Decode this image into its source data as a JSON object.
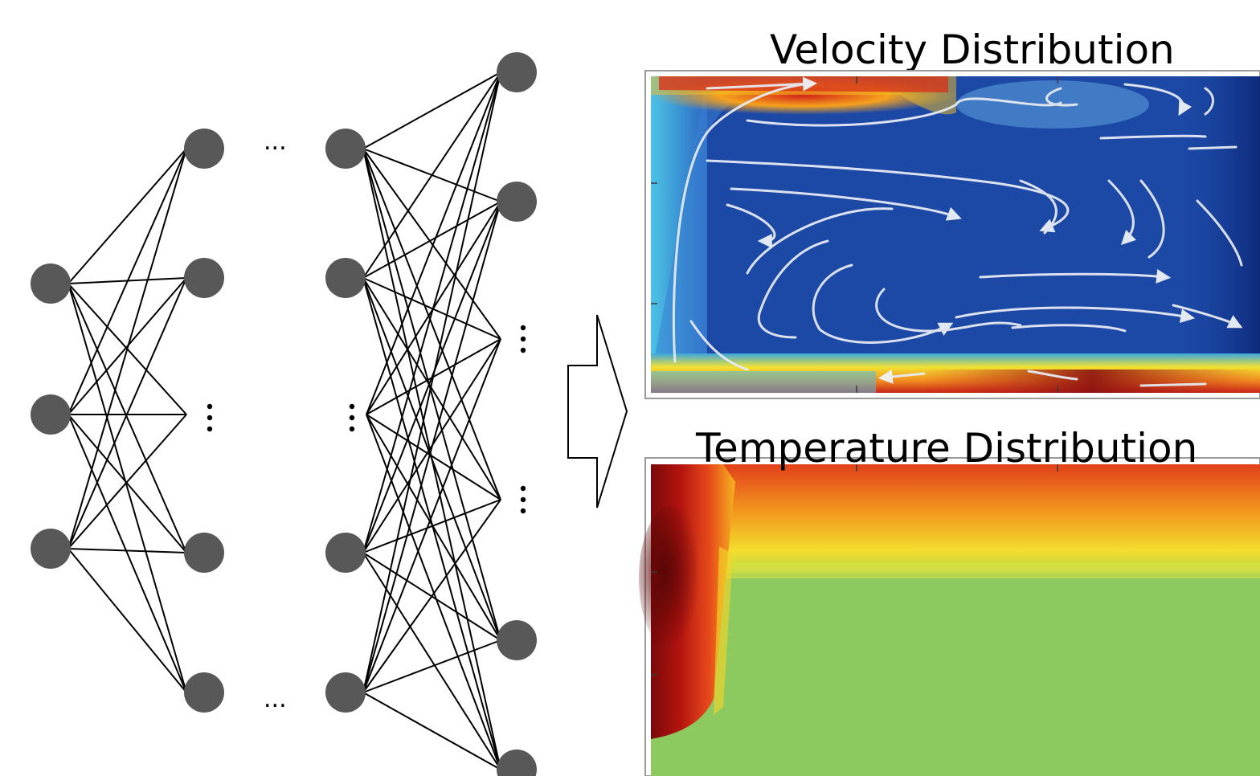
{
  "figure": {
    "velocity_title": "Velocity Distribution",
    "temperature_title": "Temperature Distribution",
    "ellipsis_horizontal": "...",
    "colors": {
      "node": "#585858",
      "edge": "#000000",
      "flow_background": "#1c48a6",
      "streamline": "#e6eaf2",
      "hot": "#c41a10",
      "warm": "#f5a11e",
      "cool": "#8cc95f"
    }
  }
}
